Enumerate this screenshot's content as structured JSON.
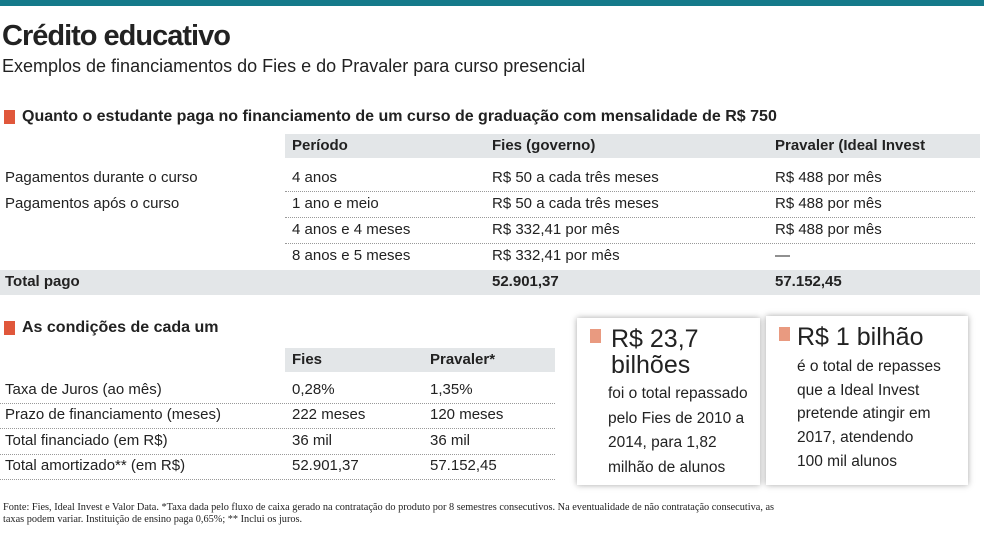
{
  "header": {
    "title": "Crédito educativo",
    "subtitle": "Exemplos de financiamentos do Fies e do Pravaler para curso presencial"
  },
  "table1": {
    "title": "Quanto o estudante paga no financiamento de um curso de graduação com mensalidade de R$ 750",
    "columns": [
      "Período",
      "Fies (governo)",
      "Pravaler (Ideal Invest"
    ],
    "rows": [
      [
        "Pagamentos durante o curso",
        "4 anos",
        "R$ 50 a cada três meses",
        "R$ 488  por mês"
      ],
      [
        "Pagamentos após o curso",
        "1 ano e meio",
        "R$ 50 a cada três meses",
        "R$ 488 por mês"
      ],
      [
        null,
        "4 anos e 4 meses",
        "R$ 332,41 por mês",
        "R$ 488 por mês"
      ],
      [
        null,
        "8 anos e 5 meses",
        "R$ 332,41 por mês",
        "—"
      ]
    ],
    "total": [
      "Total pago",
      "52.901,37",
      "57.152,45"
    ]
  },
  "table2": {
    "title": "As condições de cada um",
    "columns": [
      "Fies",
      "Pravaler*"
    ],
    "rows": [
      [
        "Taxa de Juros (ao mês)",
        "0,28%",
        "1,35%"
      ],
      [
        "Prazo de financiamento (meses)",
        "222 meses",
        "120 meses"
      ],
      [
        "Total financiado (em R$)",
        "36 mil",
        "36 mil"
      ],
      [
        "Total amortizado** (em R$)",
        "52.901,37",
        "57.152,45"
      ]
    ]
  },
  "highlights": [
    {
      "value": [
        "R$ 23,7",
        "bilhões"
      ],
      "text": [
        "foi o total repassado",
        "pelo Fies de 2010 a",
        "2014, para 1,82",
        "milhão de alunos"
      ]
    },
    {
      "value": [
        "R$ 1 bilhão"
      ],
      "text": [
        "é o total de repasses",
        "que a Ideal Invest",
        "pretende atingir em",
        "2017, atendendo",
        "100 mil alunos"
      ]
    }
  ],
  "footnote": [
    "Fonte: Fies, Ideal Invest e Valor Data. *Taxa dada pelo fluxo de caixa gerado na contratação do produto por 8 semestres consecutivos. Na eventualidade de não contratação consecutiva, as",
    "taxas podem variar. Instituição de ensino paga 0,65%; ** Inclui os juros."
  ]
}
